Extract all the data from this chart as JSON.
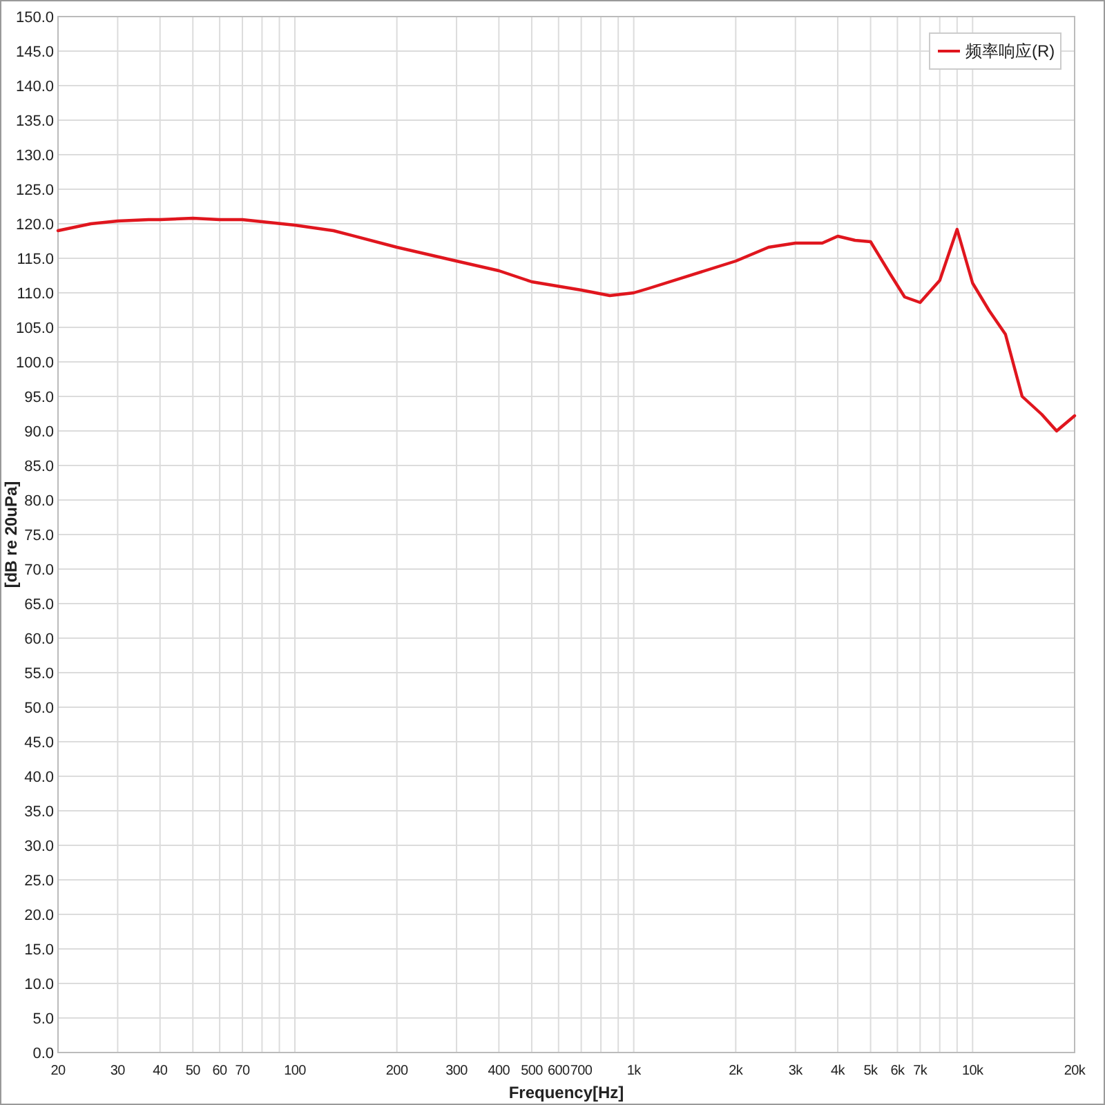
{
  "chart_data": {
    "type": "line",
    "xlabel": "Frequency[Hz]",
    "ylabel": "[dB re 20uPa]",
    "log": "x",
    "grid": true,
    "legend": "top right",
    "marker": "none",
    "line_style": "solid",
    "xlim": [
      20,
      20000
    ],
    "ylim": [
      0,
      150
    ],
    "xticks": [
      20,
      30,
      40,
      50,
      60,
      70,
      {
        "value": 80,
        "label": null
      },
      {
        "value": 90,
        "label": null
      },
      100,
      200,
      300,
      400,
      500,
      600,
      700,
      {
        "value": 800,
        "label": null
      },
      {
        "value": 900,
        "label": null
      },
      {
        "value": 1000,
        "label": "1k"
      },
      {
        "value": 2000,
        "label": "2k"
      },
      {
        "value": 3000,
        "label": "3k"
      },
      {
        "value": 4000,
        "label": "4k"
      },
      {
        "value": 5000,
        "label": "5k"
      },
      {
        "value": 6000,
        "label": "6k"
      },
      {
        "value": 7000,
        "label": "7k"
      },
      {
        "value": 8000,
        "label": null
      },
      {
        "value": 9000,
        "label": null
      },
      {
        "value": 10000,
        "label": "10k"
      },
      {
        "value": 20000,
        "label": "20k"
      }
    ],
    "yticks": [
      {
        "value": 0,
        "label": "0.0"
      },
      {
        "value": 5,
        "label": "5.0"
      },
      {
        "value": 10,
        "label": "10.0"
      },
      {
        "value": 15,
        "label": "15.0"
      },
      {
        "value": 20,
        "label": "20.0"
      },
      {
        "value": 25,
        "label": "25.0"
      },
      {
        "value": 30,
        "label": "30.0"
      },
      {
        "value": 35,
        "label": "35.0"
      },
      {
        "value": 40,
        "label": "40.0"
      },
      {
        "value": 45,
        "label": "45.0"
      },
      {
        "value": 50,
        "label": "50.0"
      },
      {
        "value": 55,
        "label": "55.0"
      },
      {
        "value": 60,
        "label": "60.0"
      },
      {
        "value": 65,
        "label": "65.0"
      },
      {
        "value": 70,
        "label": "70.0"
      },
      {
        "value": 75,
        "label": "75.0"
      },
      {
        "value": 80,
        "label": "80.0"
      },
      {
        "value": 85,
        "label": "85.0"
      },
      {
        "value": 90,
        "label": "90.0"
      },
      {
        "value": 95,
        "label": "95.0"
      },
      {
        "value": 100,
        "label": "100.0"
      },
      {
        "value": 105,
        "label": "105.0"
      },
      {
        "value": 110,
        "label": "110.0"
      },
      {
        "value": 115,
        "label": "115.0"
      },
      {
        "value": 120,
        "label": "120.0"
      },
      {
        "value": 125,
        "label": "125.0"
      },
      {
        "value": 130,
        "label": "130.0"
      },
      {
        "value": 135,
        "label": "135.0"
      },
      {
        "value": 140,
        "label": "140.0"
      },
      {
        "value": 145,
        "label": "145.0"
      },
      {
        "value": 150,
        "label": "150.0"
      }
    ],
    "series": [
      {
        "name": "频率响应(R)",
        "color": "#e0161e",
        "x": [
          20,
          25,
          30,
          37,
          40,
          50,
          60,
          70,
          100,
          130,
          200,
          300,
          400,
          500,
          700,
          850,
          1000,
          1100,
          2000,
          2500,
          3000,
          3600,
          4000,
          4500,
          5000,
          5700,
          6300,
          7000,
          8000,
          9000,
          10000,
          11200,
          12500,
          14000,
          16000,
          17700,
          20000
        ],
        "values": [
          119.0,
          120.0,
          120.4,
          120.6,
          120.6,
          120.8,
          120.6,
          120.6,
          119.8,
          119.0,
          116.6,
          114.6,
          113.2,
          111.6,
          110.4,
          109.6,
          110.0,
          110.6,
          114.6,
          116.6,
          117.2,
          117.2,
          118.2,
          117.6,
          117.4,
          112.8,
          109.4,
          108.6,
          111.8,
          119.2,
          111.4,
          107.4,
          104.0,
          95.0,
          92.4,
          90.0,
          92.2
        ]
      }
    ]
  }
}
